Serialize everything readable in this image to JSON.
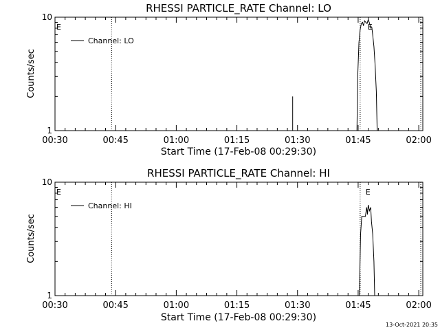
{
  "footer": {
    "timestamp": "13-Oct-2021 20:35"
  },
  "chart_data": [
    {
      "type": "line",
      "title": "RHESSI PARTICLE_RATE Channel: LO",
      "xlabel": "Start Time (17-Feb-08 00:29:30)",
      "ylabel": "Counts/sec",
      "y_scale": "log",
      "ylim": [
        1,
        10
      ],
      "y_ticks": [
        {
          "value": 1,
          "label": "1"
        },
        {
          "value": 10,
          "label": "10"
        }
      ],
      "x_unit": "minutes after 00:30 UT",
      "xlim": [
        0,
        91
      ],
      "x_ticks": [
        {
          "value": 0,
          "label": "00:30"
        },
        {
          "value": 15,
          "label": "00:45"
        },
        {
          "value": 30,
          "label": "01:00"
        },
        {
          "value": 45,
          "label": "01:15"
        },
        {
          "value": 60,
          "label": "01:30"
        },
        {
          "value": 75,
          "label": "01:45"
        },
        {
          "value": 90,
          "label": "02:00"
        }
      ],
      "legend": {
        "placement": "top-left",
        "entries": [
          {
            "label": "Channel: LO"
          }
        ]
      },
      "vlines": [
        14,
        75.5,
        90.5
      ],
      "annotations": [
        {
          "text": "E",
          "x": 0,
          "y": 8.2
        },
        {
          "text": "E",
          "x": 77,
          "y": 8.2
        }
      ],
      "series": [
        {
          "segments": [
            [
              [
                58.8,
                2.0
              ],
              [
                58.8,
                1.0
              ]
            ],
            [
              [
                74.7,
                1.0
              ],
              [
                74.9,
                3.0
              ],
              [
                75.2,
                6.0
              ],
              [
                75.5,
                7.8
              ],
              [
                75.8,
                8.8
              ],
              [
                76.1,
                9.0
              ],
              [
                76.3,
                8.4
              ],
              [
                76.6,
                9.3
              ],
              [
                76.9,
                9.0
              ],
              [
                77.2,
                8.8
              ],
              [
                77.5,
                9.5
              ],
              [
                77.8,
                8.9
              ],
              [
                78.1,
                8.0
              ],
              [
                78.4,
                8.1
              ],
              [
                78.6,
                7.0
              ],
              [
                78.9,
                5.5
              ],
              [
                79.2,
                3.8
              ],
              [
                79.5,
                2.2
              ],
              [
                79.7,
                1.0
              ]
            ]
          ]
        }
      ]
    },
    {
      "type": "line",
      "title": "RHESSI PARTICLE_RATE Channel: HI",
      "xlabel": "Start Time (17-Feb-08 00:29:30)",
      "ylabel": "Counts/sec",
      "y_scale": "log",
      "ylim": [
        1,
        10
      ],
      "y_ticks": [
        {
          "value": 1,
          "label": "1"
        },
        {
          "value": 10,
          "label": "10"
        }
      ],
      "x_unit": "minutes after 00:30 UT",
      "xlim": [
        0,
        91
      ],
      "x_ticks": [
        {
          "value": 0,
          "label": "00:30"
        },
        {
          "value": 15,
          "label": "00:45"
        },
        {
          "value": 30,
          "label": "01:00"
        },
        {
          "value": 45,
          "label": "01:15"
        },
        {
          "value": 60,
          "label": "01:30"
        },
        {
          "value": 75,
          "label": "01:45"
        },
        {
          "value": 90,
          "label": "02:00"
        }
      ],
      "legend": {
        "placement": "top-left",
        "entries": [
          {
            "label": "Channel: HI"
          }
        ]
      },
      "vlines": [
        14,
        75.5,
        90.5
      ],
      "annotations": [
        {
          "text": "E",
          "x": 0,
          "y": 8.2
        },
        {
          "text": "E",
          "x": 76.5,
          "y": 8.2
        }
      ],
      "series": [
        {
          "segments": [
            [
              [
                75.3,
                1.0
              ],
              [
                75.6,
                3.5
              ],
              [
                75.9,
                5.0
              ],
              [
                76.2,
                5.0
              ],
              [
                76.5,
                5.0
              ],
              [
                76.8,
                5.0
              ],
              [
                77.1,
                6.0
              ],
              [
                77.3,
                5.2
              ],
              [
                77.5,
                6.3
              ],
              [
                77.8,
                5.6
              ],
              [
                78.1,
                6.0
              ],
              [
                78.3,
                4.5
              ],
              [
                78.6,
                3.5
              ],
              [
                78.9,
                2.0
              ],
              [
                79.1,
                1.0
              ]
            ]
          ]
        }
      ]
    }
  ]
}
